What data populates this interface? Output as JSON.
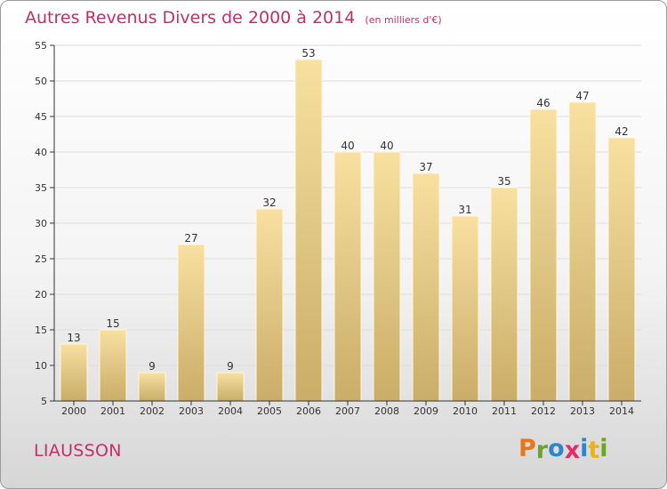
{
  "title": "Autres Revenus Divers de 2000 à 2014",
  "unit_note": "(en milliers d'€)",
  "place_name": "LIAUSSON",
  "brand": {
    "text": "Proxiti",
    "letter_colors": [
      "#e8761e",
      "#6aa526",
      "#2e86c8",
      "#e32c6c",
      "#2e86c8",
      "#e8b31e",
      "#6aa526"
    ]
  },
  "colors": {
    "bar_light": "#f8e0a0",
    "bar_dark": "#c9ad68",
    "bar_stroke": "#fff6dc",
    "title": "#c0306a",
    "axis": "#333333",
    "grid": "#dddddd"
  },
  "chart_data": {
    "type": "bar",
    "title": "Autres Revenus Divers de 2000 à 2014",
    "subtitle": "(en milliers d'€)",
    "xlabel": "",
    "ylabel": "",
    "categories": [
      "2000",
      "2001",
      "2002",
      "2003",
      "2004",
      "2005",
      "2006",
      "2007",
      "2008",
      "2009",
      "2010",
      "2011",
      "2012",
      "2013",
      "2014"
    ],
    "values": [
      13,
      15,
      9,
      27,
      9,
      32,
      53,
      40,
      40,
      37,
      31,
      35,
      46,
      47,
      42
    ],
    "ylim": [
      5,
      55
    ],
    "yticks": [
      5,
      10,
      15,
      20,
      25,
      30,
      35,
      40,
      45,
      50,
      55
    ],
    "grid": true,
    "data_labels": true,
    "legend": "none"
  }
}
